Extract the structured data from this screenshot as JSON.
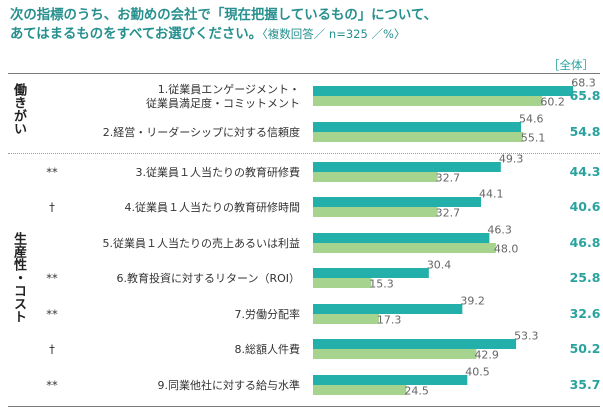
{
  "title": {
    "line1": "次の指標のうち、お勤めの会社で「現在把握しているもの」について、",
    "line2": "あてはまるものをすべてお選びください。",
    "note": "〈複数回答／ n=325 ／%〉"
  },
  "colors": {
    "series_a": "#23afaa",
    "series_b": "#a6d48f",
    "total": "#2aa39f"
  },
  "chart_data": {
    "type": "bar",
    "orientation": "horizontal",
    "total_column_label": "［全体］",
    "groups": [
      {
        "label": "働きがい",
        "row_indices": [
          0,
          1
        ]
      },
      {
        "label": "生産性・コスト",
        "row_indices": [
          2,
          3,
          4,
          5,
          6,
          7,
          8
        ]
      }
    ],
    "categories": [
      "1.従業員エンゲージメント・従業員満足度・コミットメント",
      "2.経営・リーダーシップに対する信頼度",
      "3.従業員１人当たりの教育研修費",
      "4.従業員１人当たりの教育研修時間",
      "5.従業員１人当たりの売上あるいは利益",
      "6.教育投資に対するリターン（ROI）",
      "7.労働分配率",
      "8.総額人件費",
      "9.同業他社に対する給与水準"
    ],
    "label_lines": [
      [
        "1.従業員エンゲージメント・",
        "従業員満足度・コミットメント"
      ],
      [
        "2.経営・リーダーシップに対する信頼度"
      ],
      [
        "3.従業員１人当たりの教育研修費"
      ],
      [
        "4.従業員１人当たりの教育研修時間"
      ],
      [
        "5.従業員１人当たりの売上あるいは利益"
      ],
      [
        "6.教育投資に対するリターン（ROI）"
      ],
      [
        "7.労働分配率"
      ],
      [
        "8.総額人件費"
      ],
      [
        "9.同業他社に対する給与水準"
      ]
    ],
    "significance": [
      "",
      "",
      "**",
      "†",
      "",
      "**",
      "**",
      "†",
      "**"
    ],
    "series": [
      {
        "name": "series_a",
        "values": [
          68.3,
          54.6,
          49.3,
          44.1,
          46.3,
          30.4,
          39.2,
          53.3,
          40.5
        ]
      },
      {
        "name": "series_b",
        "values": [
          60.2,
          55.1,
          32.7,
          32.7,
          48.0,
          15.3,
          17.3,
          42.9,
          24.5
        ]
      }
    ],
    "totals": [
      65.8,
      54.8,
      44.3,
      40.6,
      46.8,
      25.8,
      32.6,
      50.2,
      35.7
    ],
    "xlim": [
      0,
      100
    ]
  }
}
